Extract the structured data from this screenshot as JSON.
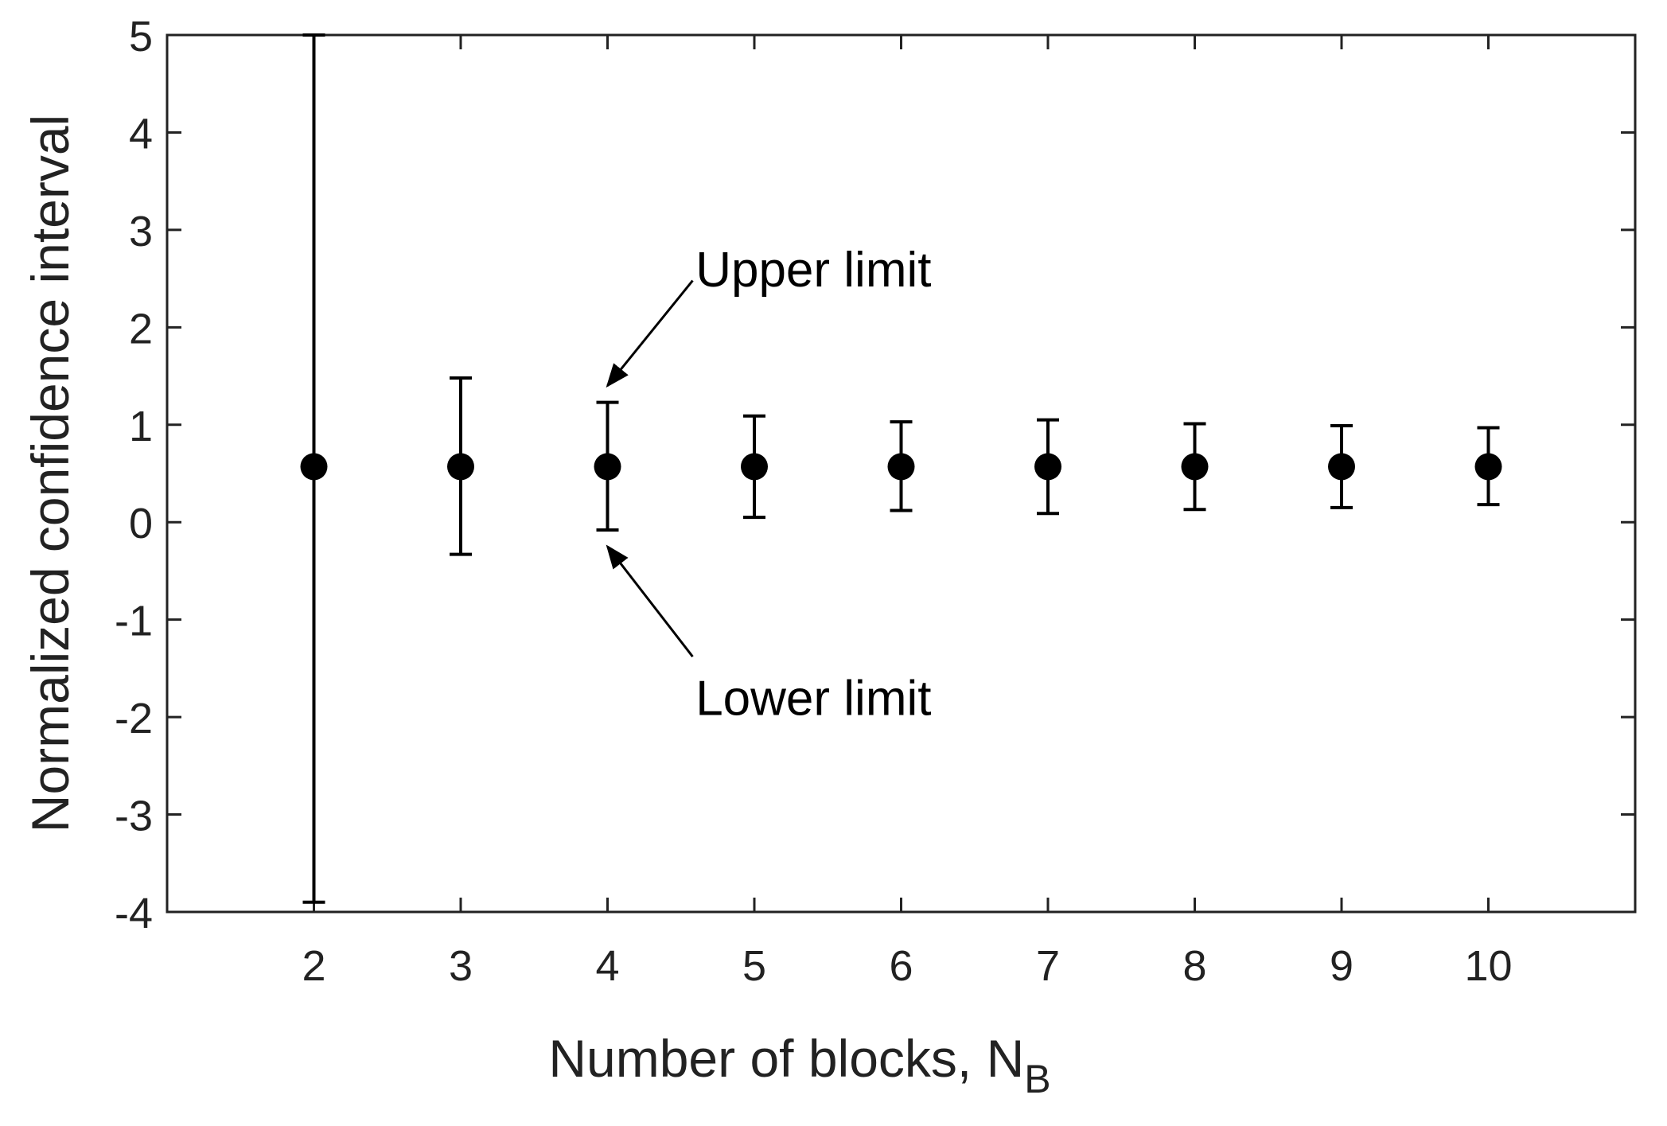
{
  "chart_data": {
    "type": "scatter",
    "xlabel_main": "Number of blocks, N",
    "xlabel_sub": "B",
    "ylabel": "Normalized confidence interval",
    "xlim": [
      1,
      11
    ],
    "ylim": [
      -4,
      5
    ],
    "xticks": [
      "2",
      "3",
      "4",
      "5",
      "6",
      "7",
      "8",
      "9",
      "10"
    ],
    "yticks": [
      "-4",
      "-3",
      "-2",
      "-1",
      "0",
      "1",
      "2",
      "3",
      "4",
      "5"
    ],
    "grid": false,
    "points": [
      {
        "x": 2,
        "y": 0.57,
        "lower": -3.9,
        "upper": 5.0
      },
      {
        "x": 3,
        "y": 0.57,
        "lower": -0.33,
        "upper": 1.48
      },
      {
        "x": 4,
        "y": 0.57,
        "lower": -0.08,
        "upper": 1.23
      },
      {
        "x": 5,
        "y": 0.57,
        "lower": 0.05,
        "upper": 1.09
      },
      {
        "x": 6,
        "y": 0.57,
        "lower": 0.12,
        "upper": 1.03
      },
      {
        "x": 7,
        "y": 0.57,
        "lower": 0.09,
        "upper": 1.05
      },
      {
        "x": 8,
        "y": 0.57,
        "lower": 0.13,
        "upper": 1.01
      },
      {
        "x": 9,
        "y": 0.57,
        "lower": 0.15,
        "upper": 0.99
      },
      {
        "x": 10,
        "y": 0.57,
        "lower": 0.18,
        "upper": 0.97
      }
    ],
    "annotations": [
      {
        "text": "Upper limit",
        "text_x": 4.6,
        "text_y": 2.6,
        "arrow_from": [
          4.58,
          2.48
        ],
        "arrow_to": [
          4.0,
          1.4
        ]
      },
      {
        "text": "Lower limit",
        "text_x": 4.6,
        "text_y": -1.8,
        "arrow_from": [
          4.58,
          -1.38
        ],
        "arrow_to": [
          4.0,
          -0.25
        ]
      }
    ],
    "colors": {
      "marker": "#000000",
      "axis": "#222222"
    }
  }
}
